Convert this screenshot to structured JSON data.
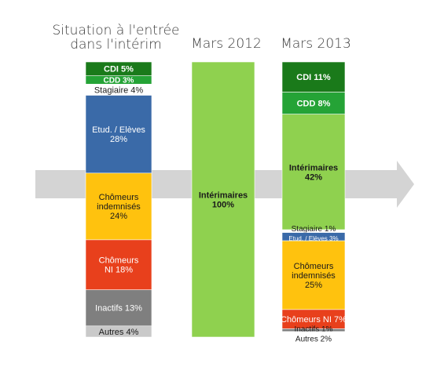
{
  "titles": {
    "col1_line1": "Situation à l'entrée",
    "col1_line2": "dans l'intérim",
    "col2": "Mars 2012",
    "col3": "Mars 2013"
  },
  "chart_data": {
    "type": "bar",
    "stacked": true,
    "orientation": "vertical",
    "background_arrow": true,
    "columns": [
      {
        "title": "Situation à l'entrée dans l'intérim",
        "segments": [
          {
            "label": "CDI 5%",
            "value": 5,
            "color": "#1a7a1a"
          },
          {
            "label": "CDD 3%",
            "value": 3,
            "color": "#25a336"
          },
          {
            "label": "Stagiaire 4%",
            "value": 4,
            "color": "#ffffff"
          },
          {
            "label": "Etud. / Elèves 28%",
            "value": 28,
            "color": "#3a6aa8"
          },
          {
            "label": "Chômeurs indemnisés 24%",
            "value": 24,
            "color": "#ffc20e"
          },
          {
            "label": "Chômeurs NI 18%",
            "value": 18,
            "color": "#e8401c"
          },
          {
            "label": "Inactifs 13%",
            "value": 13,
            "color": "#7f7f7f"
          },
          {
            "label": "Autres 4%",
            "value": 4,
            "color": "#c9c9c9"
          }
        ]
      },
      {
        "title": "Mars 2012",
        "segments": [
          {
            "label": "Intérimaires 100%",
            "value": 100,
            "color": "#8fd14f"
          }
        ]
      },
      {
        "title": "Mars 2013",
        "segments": [
          {
            "label": "CDI 11%",
            "value": 11,
            "color": "#1a7a1a"
          },
          {
            "label": "CDD 8%",
            "value": 8,
            "color": "#25a336"
          },
          {
            "label": "Intérimaires 42%",
            "value": 42,
            "color": "#8fd14f"
          },
          {
            "label": "Stagiaire 1%",
            "value": 1,
            "color": "#ffffff"
          },
          {
            "label": "Etud. / Elèves 3%",
            "value": 3,
            "color": "#3a6aa8"
          },
          {
            "label": "Chômeurs indemnisés 25%",
            "value": 25,
            "color": "#ffc20e"
          },
          {
            "label": "Chômeurs NI 7%",
            "value": 7,
            "color": "#e8401c"
          },
          {
            "label": "Inactifs 1%",
            "value": 1,
            "color": "#7f7f7f"
          },
          {
            "label": "Autres 2%",
            "value": 2,
            "color": "#ffffff"
          }
        ]
      }
    ]
  }
}
